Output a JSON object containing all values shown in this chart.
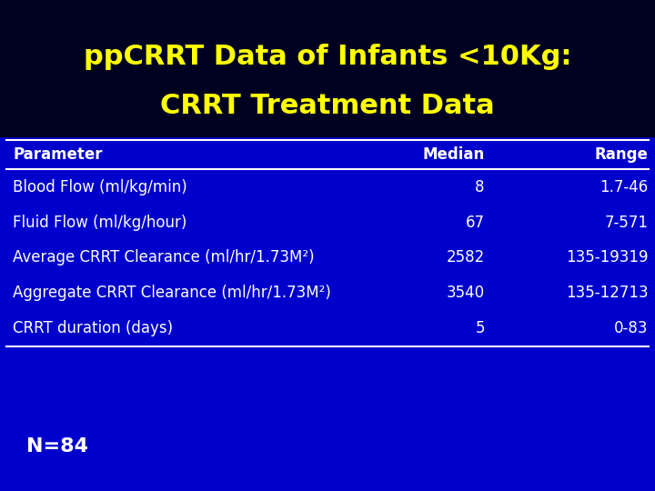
{
  "title_line1": "ppCRRT Data of Infants <10Kg:",
  "title_line2": "CRRT Treatment Data",
  "title_color": "#FFFF00",
  "bg_color_top": "#00008B",
  "bg_color_bottom": "#0000CC",
  "title_bg_color": "#000020",
  "table_headers": [
    "Parameter",
    "Median",
    "Range"
  ],
  "table_rows": [
    [
      "Blood Flow (ml/kg/min)",
      "8",
      "1.7-46"
    ],
    [
      "Fluid Flow (ml/kg/hour)",
      "67",
      "7-571"
    ],
    [
      "Average CRRT Clearance (ml/hr/1.73M²)",
      "2582",
      "135-19319"
    ],
    [
      "Aggregate CRRT Clearance (ml/hr/1.73M²)",
      "3540",
      "135-12713"
    ],
    [
      "CRRT duration (days)",
      "5",
      "0-83"
    ]
  ],
  "header_color": "#FFFFFF",
  "row_color": "#FFFFFF",
  "note": "N=84",
  "note_color": "#FFFFFF",
  "line_color": "#FFFFFF",
  "title_fontsize": 22,
  "header_fontsize": 12,
  "row_fontsize": 12,
  "note_fontsize": 16
}
